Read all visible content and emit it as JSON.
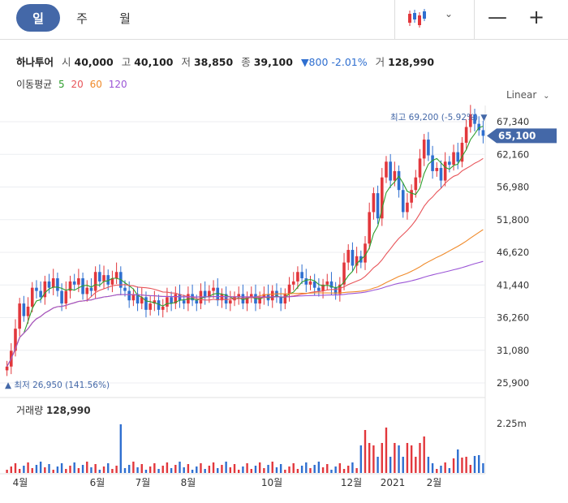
{
  "tabs": [
    {
      "label": "일",
      "active": true
    },
    {
      "label": "주",
      "active": false
    },
    {
      "label": "월",
      "active": false
    }
  ],
  "toolbar": {
    "chart_type_icon": "candlestick-icon",
    "caret": "⌄",
    "minimize": "—",
    "add": "+"
  },
  "quote": {
    "name": "하나투어",
    "open_label": "시",
    "open": "40,000",
    "high_label": "고",
    "high": "40,100",
    "low_label": "저",
    "low": "38,850",
    "close_label": "종",
    "close": "39,100",
    "change": "▼800 -2.01%",
    "volume_label": "거",
    "volume": "128,990"
  },
  "moving_average": {
    "label": "이동평균",
    "periods": [
      {
        "value": "5",
        "color": "#2e9e2e"
      },
      {
        "value": "20",
        "color": "#e8555a"
      },
      {
        "value": "60",
        "color": "#f08a2a"
      },
      {
        "value": "120",
        "color": "#9b55d6"
      }
    ]
  },
  "scale_label": "Linear",
  "colors": {
    "up": "#e2373c",
    "down": "#2f6fd0",
    "accent": "#4468a8"
  },
  "chart_data": {
    "type": "candlestick",
    "y_ticks": [
      "67,340",
      "62,160",
      "56,980",
      "51,800",
      "46,620",
      "41,440",
      "36,260",
      "31,080",
      "25,900"
    ],
    "ylim": [
      25900,
      67340
    ],
    "current_price_label": "65,100",
    "max_annotation": "최고 69,200 (-5.92%) ▼",
    "min_annotation": "▲ 최저 26,950 (141.56%)",
    "x_labels": [
      "4월",
      "6월",
      "7월",
      "8월",
      "10월",
      "12월",
      "2021",
      "2월"
    ],
    "close_series": [
      28500,
      31000,
      34500,
      38500,
      36500,
      38000,
      41000,
      40500,
      39500,
      42000,
      41000,
      42500,
      40500,
      38500,
      40500,
      42000,
      41500,
      42500,
      40000,
      41000,
      40500,
      43500,
      42000,
      43000,
      41500,
      42500,
      43500,
      41000,
      40500,
      39000,
      40000,
      38500,
      39500,
      37500,
      38500,
      39000,
      37500,
      38000,
      39500,
      38500,
      40000,
      39000,
      38500,
      40000,
      39000,
      38500,
      40500,
      39500,
      40500,
      41000,
      39000,
      40000,
      38500,
      39000,
      39500,
      40000,
      38500,
      39500,
      40000,
      38500,
      39500,
      40000,
      39000,
      40500,
      39500,
      38500,
      40000,
      41500,
      42000,
      43500,
      42500,
      41500,
      42000,
      41000,
      40500,
      41500,
      42000,
      41000,
      40000,
      41500,
      45000,
      47000,
      44500,
      46000,
      45000,
      48000,
      53000,
      56000,
      52000,
      58500,
      61000,
      58000,
      59500,
      56500,
      53000,
      54500,
      56500,
      58500,
      61500,
      64500,
      62000,
      59500,
      60000,
      58000,
      61000,
      60500,
      62500,
      61000,
      64000,
      66500,
      68500,
      67000,
      66000,
      65100
    ],
    "ma_series": [
      {
        "name": "5"
      },
      {
        "name": "20"
      },
      {
        "name": "60"
      },
      {
        "name": "120"
      }
    ],
    "volume_label": "거래량",
    "volume_value": "128,990",
    "volume_axis_tick": "2.25m"
  }
}
